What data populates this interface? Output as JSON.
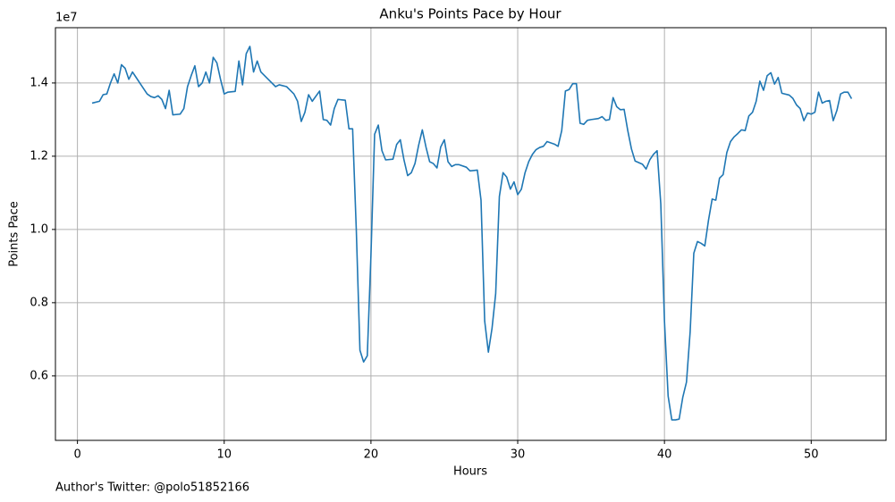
{
  "chart_data": {
    "type": "line",
    "title": "Anku's Points Pace by Hour",
    "x_label": "Hours",
    "y_label": "Points Pace",
    "y_offset_label": "1e7",
    "footnote": "Author's Twitter: @polo51852166",
    "grid": true,
    "xlim": [
      -1.5,
      55.1
    ],
    "ylim": [
      0.424,
      1.551
    ],
    "xticks": [
      0,
      10,
      20,
      30,
      40,
      50
    ],
    "yticks": [
      0.6,
      0.8,
      {
        "value": 1,
        "label": "1.0"
      },
      1.2,
      1.4
    ],
    "x": [
      1.0,
      1.5,
      1.75,
      2.0,
      2.25,
      2.5,
      2.75,
      3.0,
      3.25,
      3.5,
      3.75,
      4.0,
      4.25,
      4.5,
      4.75,
      5.0,
      5.25,
      5.5,
      5.75,
      6.0,
      6.25,
      6.5,
      7.0,
      7.25,
      7.5,
      7.75,
      8.0,
      8.25,
      8.5,
      8.75,
      9.0,
      9.25,
      9.5,
      9.75,
      10.0,
      10.25,
      10.75,
      11.0,
      11.25,
      11.5,
      11.75,
      12.0,
      12.25,
      12.5,
      13.0,
      13.5,
      13.75,
      14.25,
      14.5,
      14.75,
      15.0,
      15.25,
      15.5,
      15.75,
      16.0,
      16.5,
      16.75,
      17.0,
      17.25,
      17.5,
      17.75,
      18.25,
      18.5,
      18.75,
      19.0,
      19.25,
      19.5,
      19.75,
      20.0,
      20.25,
      20.5,
      20.75,
      21.0,
      21.5,
      21.75,
      22.0,
      22.25,
      22.5,
      22.75,
      23.0,
      23.25,
      23.5,
      23.75,
      24.0,
      24.25,
      24.5,
      24.75,
      25.0,
      25.25,
      25.5,
      25.75,
      26.0,
      26.5,
      26.75,
      27.25,
      27.5,
      27.75,
      28.0,
      28.25,
      28.5,
      28.75,
      29.0,
      29.25,
      29.5,
      29.75,
      30.0,
      30.25,
      30.5,
      30.75,
      31.0,
      31.25,
      31.5,
      31.75,
      32.0,
      32.5,
      32.75,
      33.0,
      33.25,
      33.5,
      33.75,
      34.0,
      34.25,
      34.5,
      34.75,
      35.0,
      35.5,
      35.75,
      36.0,
      36.25,
      36.5,
      36.75,
      37.0,
      37.25,
      37.5,
      37.75,
      38.0,
      38.5,
      38.75,
      39.0,
      39.25,
      39.5,
      39.75,
      40.0,
      40.25,
      40.5,
      40.75,
      41.0,
      41.25,
      41.5,
      41.75,
      42.0,
      42.25,
      42.5,
      42.75,
      43.0,
      43.25,
      43.5,
      43.75,
      44.0,
      44.25,
      44.5,
      44.75,
      45.0,
      45.25,
      45.5,
      45.75,
      46.0,
      46.25,
      46.5,
      46.75,
      47.0,
      47.25,
      47.5,
      47.75,
      48.0,
      48.5,
      48.75,
      49.0,
      49.25,
      49.5,
      49.75,
      50.0,
      50.25,
      50.5,
      50.75,
      51.0,
      51.25,
      51.5,
      51.75,
      52.0,
      52.25,
      52.5,
      52.75
    ],
    "series": [
      {
        "color": "#1f77b4",
        "values": [
          1.345,
          1.35,
          1.368,
          1.37,
          1.4,
          1.425,
          1.4,
          1.45,
          1.44,
          1.41,
          1.43,
          1.415,
          1.4,
          1.385,
          1.37,
          1.363,
          1.36,
          1.365,
          1.355,
          1.33,
          1.38,
          1.313,
          1.315,
          1.33,
          1.39,
          1.42,
          1.447,
          1.39,
          1.4,
          1.43,
          1.4,
          1.47,
          1.455,
          1.41,
          1.37,
          1.375,
          1.377,
          1.46,
          1.395,
          1.48,
          1.5,
          1.43,
          1.46,
          1.43,
          1.41,
          1.39,
          1.395,
          1.39,
          1.38,
          1.37,
          1.35,
          1.295,
          1.32,
          1.368,
          1.35,
          1.378,
          1.3,
          1.298,
          1.285,
          1.33,
          1.355,
          1.353,
          1.275,
          1.275,
          1.0,
          0.67,
          0.638,
          0.655,
          0.93,
          1.26,
          1.285,
          1.215,
          1.19,
          1.192,
          1.232,
          1.245,
          1.19,
          1.147,
          1.155,
          1.18,
          1.23,
          1.272,
          1.225,
          1.185,
          1.18,
          1.168,
          1.225,
          1.245,
          1.185,
          1.172,
          1.177,
          1.177,
          1.17,
          1.16,
          1.162,
          1.08,
          0.75,
          0.665,
          0.73,
          0.825,
          1.09,
          1.155,
          1.143,
          1.11,
          1.13,
          1.095,
          1.11,
          1.155,
          1.185,
          1.205,
          1.218,
          1.224,
          1.227,
          1.24,
          1.233,
          1.227,
          1.27,
          1.378,
          1.382,
          1.398,
          1.398,
          1.29,
          1.287,
          1.298,
          1.3,
          1.303,
          1.308,
          1.298,
          1.3,
          1.36,
          1.335,
          1.327,
          1.328,
          1.27,
          1.22,
          1.187,
          1.178,
          1.165,
          1.19,
          1.205,
          1.215,
          1.07,
          0.75,
          0.545,
          0.48,
          0.48,
          0.482,
          0.542,
          0.583,
          0.72,
          0.935,
          0.967,
          0.962,
          0.955,
          1.025,
          1.083,
          1.08,
          1.14,
          1.15,
          1.21,
          1.24,
          1.253,
          1.262,
          1.272,
          1.27,
          1.31,
          1.32,
          1.35,
          1.405,
          1.38,
          1.42,
          1.428,
          1.397,
          1.415,
          1.372,
          1.367,
          1.358,
          1.34,
          1.33,
          1.297,
          1.318,
          1.315,
          1.32,
          1.375,
          1.345,
          1.35,
          1.352,
          1.297,
          1.325,
          1.37,
          1.375,
          1.375,
          1.357
        ]
      }
    ]
  }
}
